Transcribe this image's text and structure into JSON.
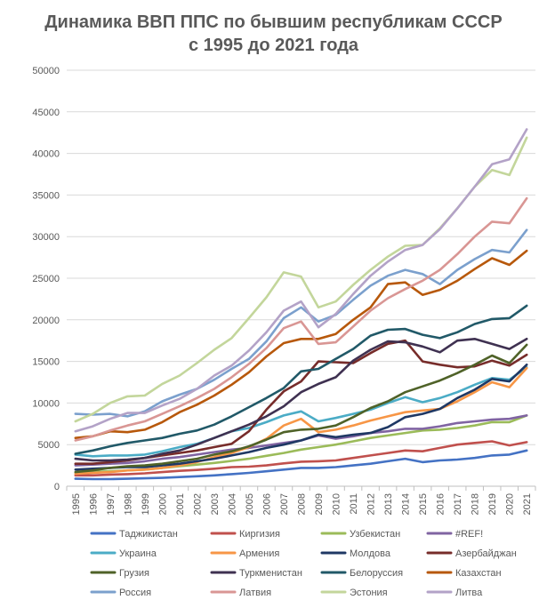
{
  "chart_data": {
    "type": "line",
    "title_line1": "Динамика ВВП ППС по бывшим республикам СССР",
    "title_line2": "с 1995 до 2021 года",
    "xlabel": "",
    "ylabel": "",
    "ylim": [
      0,
      50000
    ],
    "yticks": [
      0,
      5000,
      10000,
      15000,
      20000,
      25000,
      30000,
      35000,
      40000,
      45000,
      50000
    ],
    "grid": true,
    "legend_position": "bottom",
    "categories": [
      "1995",
      "1996",
      "1997",
      "1998",
      "1999",
      "2000",
      "2001",
      "2002",
      "2003",
      "2004",
      "2005",
      "2006",
      "2007",
      "2008",
      "2009",
      "2010",
      "2011",
      "2012",
      "2013",
      "2014",
      "2015",
      "2016",
      "2017",
      "2018",
      "2019",
      "2020",
      "2021"
    ],
    "series": [
      {
        "name": "Таджикистан",
        "color": "#4472C4",
        "values": [
          900,
          850,
          850,
          900,
          950,
          1000,
          1100,
          1200,
          1300,
          1450,
          1600,
          1800,
          2000,
          2200,
          2200,
          2300,
          2500,
          2700,
          3000,
          3300,
          2900,
          3100,
          3200,
          3400,
          3700,
          3800,
          4300
        ]
      },
      {
        "name": "Киргизия",
        "color": "#C0504D",
        "values": [
          1300,
          1300,
          1400,
          1450,
          1550,
          1700,
          1850,
          1950,
          2100,
          2300,
          2350,
          2500,
          2750,
          2950,
          3000,
          3100,
          3400,
          3700,
          4000,
          4300,
          4200,
          4600,
          5000,
          5200,
          5400,
          4900,
          5300
        ]
      },
      {
        "name": "Узбекистан",
        "color": "#9BBB59",
        "values": [
          1600,
          1700,
          1800,
          1900,
          2000,
          2200,
          2400,
          2600,
          2800,
          3050,
          3300,
          3650,
          4000,
          4400,
          4700,
          5000,
          5400,
          5800,
          6100,
          6400,
          6700,
          6800,
          7000,
          7300,
          7700,
          7700,
          8500
        ]
      },
      {
        "name": "#REF!",
        "color": "#8064A2",
        "values": [
          2500,
          2600,
          2700,
          2800,
          3000,
          3300,
          3500,
          3800,
          4100,
          4400,
          4600,
          4900,
          5200,
          5500,
          6100,
          5700,
          6000,
          6400,
          6600,
          6900,
          6900,
          7200,
          7600,
          7800,
          8000,
          8100,
          8500
        ]
      },
      {
        "name": "Украина",
        "color": "#4BACC6",
        "values": [
          3800,
          3600,
          3700,
          3700,
          3800,
          4200,
          4700,
          5100,
          5800,
          6600,
          7000,
          7700,
          8500,
          9000,
          7800,
          8200,
          8700,
          9200,
          10000,
          10700,
          10100,
          10600,
          11300,
          12200,
          13000,
          12800,
          14300
        ]
      },
      {
        "name": "Армения",
        "color": "#F79646",
        "values": [
          1500,
          1600,
          1700,
          1900,
          2000,
          2200,
          2500,
          2900,
          3500,
          4000,
          4700,
          5700,
          7300,
          8100,
          6500,
          6800,
          7300,
          7900,
          8400,
          8900,
          9100,
          9300,
          10200,
          11300,
          12500,
          11900,
          14200
        ]
      },
      {
        "name": "Молдова",
        "color": "#1F3864",
        "values": [
          2000,
          2100,
          2200,
          2300,
          2300,
          2500,
          2700,
          3000,
          3300,
          3700,
          4100,
          4600,
          5000,
          5500,
          6200,
          5900,
          6200,
          6400,
          7100,
          8300,
          8700,
          9300,
          10600,
          11600,
          12900,
          12600,
          14600
        ]
      },
      {
        "name": "Азербайджан",
        "color": "#772C2A",
        "values": [
          2700,
          2700,
          2900,
          3100,
          3400,
          3700,
          4000,
          4300,
          4700,
          5100,
          6600,
          9200,
          11400,
          12600,
          15000,
          14900,
          14800,
          16000,
          17100,
          17500,
          15000,
          14600,
          14300,
          14400,
          15100,
          14500,
          15800
        ]
      },
      {
        "name": "Грузия",
        "color": "#4F6228",
        "values": [
          1700,
          1900,
          2200,
          2400,
          2500,
          2700,
          3000,
          3300,
          3800,
          4200,
          4800,
          5600,
          6500,
          6800,
          6900,
          7300,
          8300,
          9400,
          10200,
          11300,
          12000,
          12700,
          13600,
          14600,
          15700,
          14800,
          17000
        ]
      },
      {
        "name": "Туркменистан",
        "color": "#3F3151",
        "values": [
          3300,
          3100,
          3100,
          3200,
          3400,
          3900,
          4300,
          5000,
          5800,
          6600,
          7400,
          8400,
          9600,
          11300,
          12300,
          13100,
          15100,
          16400,
          17400,
          17300,
          16800,
          16100,
          17500,
          17700,
          17100,
          16500,
          17700
        ]
      },
      {
        "name": "Белоруссия",
        "color": "#215968",
        "values": [
          3900,
          4300,
          4800,
          5200,
          5500,
          5800,
          6300,
          6700,
          7400,
          8400,
          9500,
          10600,
          11800,
          13800,
          14100,
          15300,
          16500,
          18100,
          18800,
          18900,
          18200,
          17800,
          18500,
          19500,
          20100,
          20200,
          21700
        ]
      },
      {
        "name": "Казахстан",
        "color": "#B7580B",
        "values": [
          5800,
          6000,
          6600,
          6500,
          6800,
          7700,
          8900,
          9800,
          10900,
          12200,
          13700,
          15600,
          17200,
          17700,
          17700,
          18300,
          20000,
          21500,
          24300,
          24500,
          23000,
          23600,
          24700,
          26100,
          27400,
          26600,
          28300
        ]
      },
      {
        "name": "Россия",
        "color": "#7BA0CD",
        "values": [
          8700,
          8600,
          8700,
          8400,
          9000,
          10200,
          11000,
          11700,
          12800,
          14100,
          15300,
          17400,
          20200,
          21500,
          19800,
          20600,
          22400,
          24100,
          25300,
          26000,
          25500,
          24300,
          26000,
          27300,
          28400,
          28100,
          30800
        ]
      },
      {
        "name": "Латвия",
        "color": "#D99694",
        "values": [
          5500,
          6000,
          6700,
          7300,
          7800,
          8700,
          9600,
          10600,
          11700,
          13100,
          14700,
          16600,
          19000,
          19800,
          17100,
          17300,
          19200,
          21100,
          22600,
          23700,
          24700,
          26000,
          27900,
          30000,
          31800,
          31600,
          34600
        ]
      },
      {
        "name": "Эстония",
        "color": "#C3D69B",
        "values": [
          7800,
          8700,
          10000,
          10800,
          10900,
          12300,
          13300,
          14800,
          16400,
          17800,
          20200,
          22700,
          25700,
          25200,
          21500,
          22200,
          24200,
          26000,
          27600,
          28900,
          29000,
          31000,
          33400,
          36000,
          38000,
          37400,
          41900
        ]
      },
      {
        "name": "Литва",
        "color": "#B3A2C7",
        "values": [
          6600,
          7200,
          8100,
          8800,
          8800,
          9700,
          10500,
          11700,
          13300,
          14500,
          16300,
          18500,
          21100,
          22200,
          19100,
          20700,
          23100,
          25300,
          27000,
          28400,
          29000,
          30900,
          33400,
          36000,
          38700,
          39300,
          42900
        ]
      }
    ]
  }
}
